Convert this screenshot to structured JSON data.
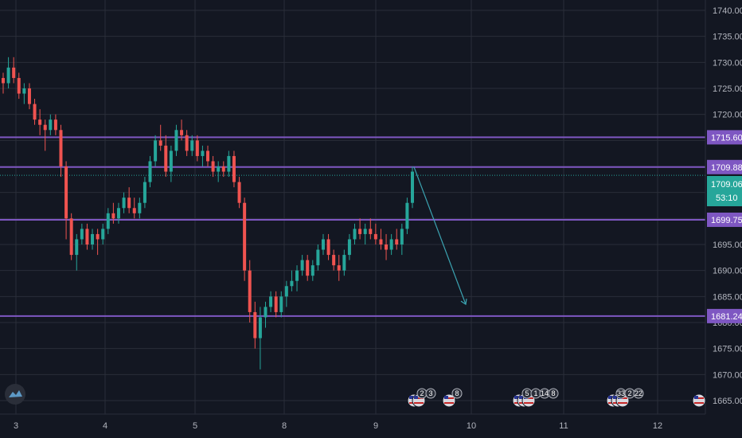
{
  "colors": {
    "background": "#131722",
    "grid": "#2a2e39",
    "axis_text": "#b2b5be",
    "up": "#26a69a",
    "down": "#ef5350",
    "level_line": "#7e57c2",
    "level_tag": "#7e57c2",
    "current_tag": "#26a69a",
    "arrow": "#3ba3b1"
  },
  "logo": {
    "icon": "tradingview-logo-icon"
  },
  "price_axis": {
    "ticks": [
      "1740.00",
      "1735.00",
      "1730.00",
      "1725.00",
      "1720.00",
      "1715.00",
      "1710.00",
      "1705.00",
      "1700.00",
      "1695.00",
      "1690.00",
      "1685.00",
      "1680.00",
      "1675.00",
      "1670.00",
      "1665.00"
    ]
  },
  "time_axis": {
    "labels": [
      "3",
      "4",
      "5",
      "8",
      "9",
      "10",
      "11",
      "12"
    ]
  },
  "levels": [
    {
      "price": 1715.6,
      "label": "1715.60"
    },
    {
      "price": 1709.88,
      "label": "1709.88"
    },
    {
      "price": 1699.75,
      "label": "1699.75"
    },
    {
      "price": 1681.24,
      "label": "1681.24"
    }
  ],
  "current_price": {
    "label": "1709.06",
    "countdown": "53:10"
  },
  "forecast_arrow": {
    "from_price": 1709.9,
    "to_price": 1683.5
  },
  "events": [
    {
      "icon": "us-flag-icon",
      "labels": [
        "2",
        "3"
      ]
    },
    {
      "icon": "us-flag-icon",
      "labels": [
        "8"
      ]
    },
    {
      "icon": "us-flag-icon",
      "labels": [
        "5",
        "1",
        "14",
        "8"
      ]
    },
    {
      "icon": "us-flag-icon",
      "labels": [
        "33",
        "2",
        "22"
      ]
    },
    {
      "icon": "us-flag-icon",
      "labels": []
    }
  ],
  "chart_data": {
    "type": "candlestick",
    "xlabel": "",
    "ylabel": "",
    "ylim": [
      1663.5,
      1741.5
    ],
    "x_categories": [
      "3",
      "4",
      "5",
      "8",
      "9",
      "10",
      "11",
      "12"
    ],
    "grid": true,
    "candles_note_values": "approximate hourly OHLC read from chart",
    "candles": [
      [
        1727,
        1728,
        1724,
        1726
      ],
      [
        1726,
        1731,
        1725,
        1729
      ],
      [
        1729,
        1731,
        1726,
        1727
      ],
      [
        1727,
        1728,
        1723,
        1724
      ],
      [
        1724,
        1726,
        1722,
        1725
      ],
      [
        1725,
        1726,
        1721,
        1722
      ],
      [
        1722,
        1723,
        1718,
        1719
      ],
      [
        1719,
        1721,
        1716,
        1718
      ],
      [
        1718,
        1719,
        1713,
        1717
      ],
      [
        1717,
        1720,
        1716,
        1719
      ],
      [
        1719,
        1720,
        1716,
        1717
      ],
      [
        1717,
        1718,
        1708,
        1710
      ],
      [
        1710,
        1711,
        1696,
        1700
      ],
      [
        1700,
        1701,
        1692,
        1693
      ],
      [
        1693,
        1697,
        1690,
        1696
      ],
      [
        1696,
        1699,
        1695,
        1698
      ],
      [
        1698,
        1699,
        1694,
        1695
      ],
      [
        1695,
        1698,
        1694,
        1697
      ],
      [
        1697,
        1698,
        1693,
        1696
      ],
      [
        1696,
        1699,
        1695,
        1698
      ],
      [
        1698,
        1702,
        1697,
        1701
      ],
      [
        1701,
        1703,
        1699,
        1700
      ],
      [
        1700,
        1703,
        1699,
        1702
      ],
      [
        1702,
        1705,
        1701,
        1704
      ],
      [
        1704,
        1706,
        1701,
        1702
      ],
      [
        1702,
        1704,
        1700,
        1701
      ],
      [
        1701,
        1704,
        1700,
        1703
      ],
      [
        1703,
        1708,
        1702,
        1707
      ],
      [
        1707,
        1712,
        1706,
        1711
      ],
      [
        1711,
        1716,
        1710,
        1715
      ],
      [
        1715,
        1718,
        1713,
        1714
      ],
      [
        1714,
        1716,
        1708,
        1709
      ],
      [
        1709,
        1714,
        1707,
        1713
      ],
      [
        1713,
        1718,
        1712,
        1717
      ],
      [
        1717,
        1719,
        1715,
        1716
      ],
      [
        1716,
        1717,
        1712,
        1713
      ],
      [
        1713,
        1716,
        1712,
        1715
      ],
      [
        1715,
        1716,
        1711,
        1712
      ],
      [
        1712,
        1714,
        1710,
        1713
      ],
      [
        1713,
        1714,
        1710,
        1711
      ],
      [
        1711,
        1712,
        1708,
        1709
      ],
      [
        1709,
        1711,
        1707,
        1710
      ],
      [
        1710,
        1711,
        1708,
        1709
      ],
      [
        1709,
        1713,
        1708,
        1712
      ],
      [
        1712,
        1713,
        1706,
        1707
      ],
      [
        1707,
        1708,
        1702,
        1703
      ],
      [
        1703,
        1704,
        1688,
        1690
      ],
      [
        1690,
        1692,
        1680,
        1682
      ],
      [
        1682,
        1684,
        1675,
        1677
      ],
      [
        1677,
        1683,
        1671,
        1681
      ],
      [
        1681,
        1684,
        1679,
        1683
      ],
      [
        1683,
        1686,
        1682,
        1685
      ],
      [
        1685,
        1686,
        1681,
        1682
      ],
      [
        1682,
        1686,
        1681,
        1685
      ],
      [
        1685,
        1688,
        1683,
        1687
      ],
      [
        1687,
        1690,
        1686,
        1688
      ],
      [
        1688,
        1691,
        1686,
        1690
      ],
      [
        1690,
        1693,
        1689,
        1692
      ],
      [
        1692,
        1693,
        1688,
        1689
      ],
      [
        1689,
        1692,
        1688,
        1691
      ],
      [
        1691,
        1695,
        1690,
        1694
      ],
      [
        1694,
        1697,
        1693,
        1696
      ],
      [
        1696,
        1697,
        1692,
        1693
      ],
      [
        1693,
        1694,
        1690,
        1691
      ],
      [
        1691,
        1693,
        1688,
        1690
      ],
      [
        1690,
        1694,
        1689,
        1693
      ],
      [
        1693,
        1697,
        1692,
        1696
      ],
      [
        1696,
        1699,
        1695,
        1698
      ],
      [
        1698,
        1700,
        1696,
        1697
      ],
      [
        1697,
        1699,
        1695,
        1698
      ],
      [
        1698,
        1700,
        1696,
        1697
      ],
      [
        1697,
        1699,
        1695,
        1696
      ],
      [
        1696,
        1698,
        1694,
        1695
      ],
      [
        1695,
        1697,
        1692,
        1694
      ],
      [
        1694,
        1697,
        1693,
        1696
      ],
      [
        1696,
        1698,
        1694,
        1695
      ],
      [
        1695,
        1699,
        1693,
        1698
      ],
      [
        1698,
        1704,
        1697,
        1703
      ],
      [
        1703,
        1710,
        1702,
        1709
      ]
    ]
  }
}
